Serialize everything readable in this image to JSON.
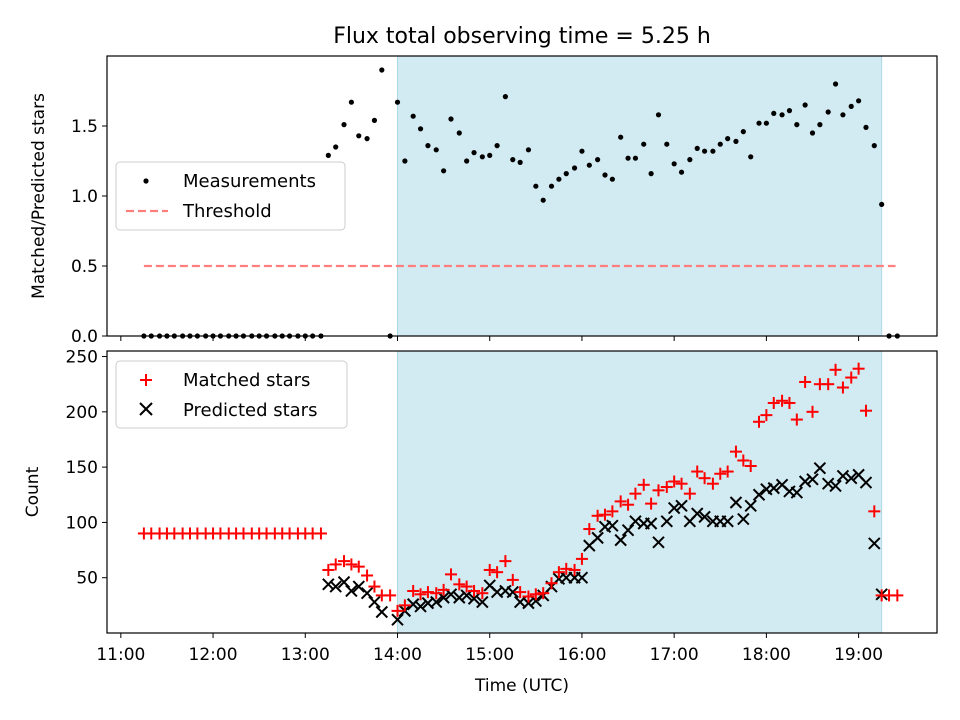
{
  "title": "Flux total observing time = 5.25 h",
  "colors": {
    "shade": "#add8e6",
    "measurement": "#000000",
    "threshold": "#ff7f7f",
    "matched": "#ff0000",
    "predicted": "#000000"
  },
  "chart_data": [
    {
      "type": "scatter",
      "ylabel": "Matched/Predicted stars",
      "xlim": [
        10.85,
        19.85
      ],
      "ylim": [
        0,
        2.0
      ],
      "yticks": [
        "0.0",
        "0.5",
        "1.0",
        "1.5"
      ],
      "legend_position": "center-left",
      "legend": [
        "Measurements",
        "Threshold"
      ],
      "observing_window": [
        "14:00",
        "19:15"
      ],
      "threshold": {
        "value": 0.5,
        "x_range": [
          11.25,
          19.4
        ]
      },
      "series": [
        {
          "name": "Measurements",
          "points": [
            [
              11.25,
              0
            ],
            [
              11.33,
              0
            ],
            [
              11.42,
              0
            ],
            [
              11.5,
              0
            ],
            [
              11.58,
              0
            ],
            [
              11.67,
              0
            ],
            [
              11.75,
              0
            ],
            [
              11.83,
              0
            ],
            [
              11.92,
              0
            ],
            [
              12.0,
              0
            ],
            [
              12.08,
              0
            ],
            [
              12.17,
              0
            ],
            [
              12.25,
              0
            ],
            [
              12.33,
              0
            ],
            [
              12.42,
              0
            ],
            [
              12.5,
              0
            ],
            [
              12.58,
              0
            ],
            [
              12.67,
              0
            ],
            [
              12.75,
              0
            ],
            [
              12.83,
              0
            ],
            [
              12.92,
              0
            ],
            [
              13.0,
              0
            ],
            [
              13.08,
              0
            ],
            [
              13.17,
              0
            ],
            [
              13.25,
              1.29
            ],
            [
              13.33,
              1.35
            ],
            [
              13.42,
              1.51
            ],
            [
              13.5,
              1.67
            ],
            [
              13.58,
              1.43
            ],
            [
              13.67,
              1.41
            ],
            [
              13.75,
              1.54
            ],
            [
              13.83,
              1.9
            ],
            [
              13.92,
              0
            ],
            [
              14.0,
              1.67
            ],
            [
              14.08,
              1.25
            ],
            [
              14.17,
              1.57
            ],
            [
              14.25,
              1.48
            ],
            [
              14.33,
              1.36
            ],
            [
              14.42,
              1.33
            ],
            [
              14.5,
              1.18
            ],
            [
              14.58,
              1.55
            ],
            [
              14.67,
              1.45
            ],
            [
              14.75,
              1.25
            ],
            [
              14.83,
              1.31
            ],
            [
              14.92,
              1.28
            ],
            [
              15.0,
              1.29
            ],
            [
              15.08,
              1.36
            ],
            [
              15.17,
              1.71
            ],
            [
              15.25,
              1.26
            ],
            [
              15.33,
              1.24
            ],
            [
              15.42,
              1.33
            ],
            [
              15.5,
              1.07
            ],
            [
              15.58,
              0.97
            ],
            [
              15.67,
              1.07
            ],
            [
              15.75,
              1.12
            ],
            [
              15.83,
              1.16
            ],
            [
              15.92,
              1.2
            ],
            [
              16.0,
              1.32
            ],
            [
              16.08,
              1.22
            ],
            [
              16.17,
              1.26
            ],
            [
              16.25,
              1.15
            ],
            [
              16.33,
              1.12
            ],
            [
              16.42,
              1.42
            ],
            [
              16.5,
              1.27
            ],
            [
              16.58,
              1.27
            ],
            [
              16.67,
              1.37
            ],
            [
              16.75,
              1.16
            ],
            [
              16.83,
              1.58
            ],
            [
              16.92,
              1.37
            ],
            [
              17.0,
              1.23
            ],
            [
              17.08,
              1.17
            ],
            [
              17.17,
              1.26
            ],
            [
              17.25,
              1.34
            ],
            [
              17.33,
              1.32
            ],
            [
              17.42,
              1.32
            ],
            [
              17.5,
              1.37
            ],
            [
              17.58,
              1.41
            ],
            [
              17.67,
              1.39
            ],
            [
              17.75,
              1.46
            ],
            [
              17.83,
              1.28
            ],
            [
              17.92,
              1.52
            ],
            [
              18.0,
              1.52
            ],
            [
              18.08,
              1.59
            ],
            [
              18.17,
              1.58
            ],
            [
              18.25,
              1.61
            ],
            [
              18.33,
              1.51
            ],
            [
              18.42,
              1.65
            ],
            [
              18.5,
              1.45
            ],
            [
              18.58,
              1.51
            ],
            [
              18.67,
              1.6
            ],
            [
              18.75,
              1.8
            ],
            [
              18.83,
              1.58
            ],
            [
              18.92,
              1.64
            ],
            [
              19.0,
              1.68
            ],
            [
              19.08,
              1.49
            ],
            [
              19.17,
              1.36
            ],
            [
              19.25,
              0.94
            ],
            [
              19.33,
              0
            ],
            [
              19.42,
              0
            ]
          ]
        }
      ]
    },
    {
      "type": "scatter",
      "xlabel": "Time (UTC)",
      "ylabel": "Count",
      "xlim": [
        10.85,
        19.85
      ],
      "ylim": [
        0,
        255
      ],
      "xticks": [
        "11:00",
        "12:00",
        "13:00",
        "14:00",
        "15:00",
        "16:00",
        "17:00",
        "18:00",
        "19:00"
      ],
      "yticks": [
        "50",
        "100",
        "150",
        "200",
        "250"
      ],
      "legend_position": "top-left",
      "legend": [
        "Matched stars",
        "Predicted stars"
      ],
      "observing_window": [
        "14:00",
        "19:15"
      ],
      "series": [
        {
          "name": "Matched stars",
          "points": [
            [
              11.25,
              90
            ],
            [
              11.33,
              90
            ],
            [
              11.42,
              90
            ],
            [
              11.5,
              90
            ],
            [
              11.58,
              90
            ],
            [
              11.67,
              90
            ],
            [
              11.75,
              90
            ],
            [
              11.83,
              90
            ],
            [
              11.92,
              90
            ],
            [
              12.0,
              90
            ],
            [
              12.08,
              90
            ],
            [
              12.17,
              90
            ],
            [
              12.25,
              90
            ],
            [
              12.33,
              90
            ],
            [
              12.42,
              90
            ],
            [
              12.5,
              90
            ],
            [
              12.58,
              90
            ],
            [
              12.67,
              90
            ],
            [
              12.75,
              90
            ],
            [
              12.83,
              90
            ],
            [
              12.92,
              90
            ],
            [
              13.0,
              90
            ],
            [
              13.08,
              90
            ],
            [
              13.17,
              90
            ],
            [
              13.25,
              57
            ],
            [
              13.33,
              62
            ],
            [
              13.42,
              65
            ],
            [
              13.5,
              62
            ],
            [
              13.58,
              60
            ],
            [
              13.67,
              52
            ],
            [
              13.75,
              42
            ],
            [
              13.83,
              34
            ],
            [
              13.92,
              34
            ],
            [
              14.0,
              20
            ],
            [
              14.08,
              25
            ],
            [
              14.17,
              38
            ],
            [
              14.25,
              35
            ],
            [
              14.33,
              37
            ],
            [
              14.42,
              36
            ],
            [
              14.5,
              39
            ],
            [
              14.58,
              53
            ],
            [
              14.67,
              44
            ],
            [
              14.75,
              42
            ],
            [
              14.83,
              38
            ],
            [
              14.92,
              36
            ],
            [
              15.0,
              57
            ],
            [
              15.08,
              55
            ],
            [
              15.17,
              65
            ],
            [
              15.25,
              48
            ],
            [
              15.33,
              37
            ],
            [
              15.42,
              33
            ],
            [
              15.5,
              35
            ],
            [
              15.58,
              36
            ],
            [
              15.67,
              45
            ],
            [
              15.75,
              55
            ],
            [
              15.83,
              58
            ],
            [
              15.92,
              57
            ],
            [
              16.0,
              67
            ],
            [
              16.08,
              94
            ],
            [
              16.17,
              106
            ],
            [
              16.25,
              107
            ],
            [
              16.33,
              110
            ],
            [
              16.42,
              119
            ],
            [
              16.5,
              116
            ],
            [
              16.58,
              126
            ],
            [
              16.67,
              134
            ],
            [
              16.75,
              117
            ],
            [
              16.83,
              129
            ],
            [
              16.92,
              132
            ],
            [
              17.0,
              137
            ],
            [
              17.08,
              135
            ],
            [
              17.17,
              126
            ],
            [
              17.25,
              146
            ],
            [
              17.33,
              140
            ],
            [
              17.42,
              135
            ],
            [
              17.5,
              144
            ],
            [
              17.58,
              146
            ],
            [
              17.67,
              164
            ],
            [
              17.75,
              156
            ],
            [
              17.83,
              151
            ],
            [
              17.92,
              191
            ],
            [
              18.0,
              197
            ],
            [
              18.08,
              208
            ],
            [
              18.17,
              210
            ],
            [
              18.25,
              208
            ],
            [
              18.33,
              193
            ],
            [
              18.42,
              227
            ],
            [
              18.5,
              200
            ],
            [
              18.58,
              225
            ],
            [
              18.67,
              225
            ],
            [
              18.75,
              238
            ],
            [
              18.83,
              222
            ],
            [
              18.92,
              231
            ],
            [
              19.0,
              239
            ],
            [
              19.08,
              201
            ],
            [
              19.17,
              110
            ],
            [
              19.25,
              34
            ],
            [
              19.33,
              34
            ],
            [
              19.42,
              34
            ]
          ]
        },
        {
          "name": "Predicted stars",
          "points": [
            [
              13.25,
              44
            ],
            [
              13.33,
              42
            ],
            [
              13.42,
              46
            ],
            [
              13.5,
              38
            ],
            [
              13.58,
              42
            ],
            [
              13.67,
              36
            ],
            [
              13.75,
              28
            ],
            [
              13.83,
              19
            ],
            [
              14.0,
              12
            ],
            [
              14.08,
              20
            ],
            [
              14.17,
              26
            ],
            [
              14.25,
              24
            ],
            [
              14.33,
              27
            ],
            [
              14.42,
              28
            ],
            [
              14.5,
              32
            ],
            [
              14.58,
              35
            ],
            [
              14.67,
              32
            ],
            [
              14.75,
              34
            ],
            [
              14.83,
              31
            ],
            [
              14.92,
              28
            ],
            [
              15.0,
              43
            ],
            [
              15.08,
              37
            ],
            [
              15.17,
              38
            ],
            [
              15.25,
              37
            ],
            [
              15.33,
              28
            ],
            [
              15.42,
              27
            ],
            [
              15.5,
              29
            ],
            [
              15.58,
              34
            ],
            [
              15.67,
              42
            ],
            [
              15.75,
              49
            ],
            [
              15.83,
              50
            ],
            [
              15.92,
              50
            ],
            [
              16.0,
              50
            ],
            [
              16.08,
              79
            ],
            [
              16.17,
              86
            ],
            [
              16.25,
              96
            ],
            [
              16.33,
              97
            ],
            [
              16.42,
              84
            ],
            [
              16.5,
              93
            ],
            [
              16.58,
              101
            ],
            [
              16.67,
              99
            ],
            [
              16.75,
              99
            ],
            [
              16.83,
              82
            ],
            [
              16.92,
              101
            ],
            [
              17.0,
              113
            ],
            [
              17.08,
              115
            ],
            [
              17.17,
              101
            ],
            [
              17.25,
              108
            ],
            [
              17.33,
              105
            ],
            [
              17.42,
              101
            ],
            [
              17.5,
              101
            ],
            [
              17.58,
              101
            ],
            [
              17.67,
              118
            ],
            [
              17.75,
              103
            ],
            [
              17.83,
              115
            ],
            [
              17.92,
              125
            ],
            [
              18.0,
              130
            ],
            [
              18.08,
              131
            ],
            [
              18.17,
              134
            ],
            [
              18.25,
              128
            ],
            [
              18.33,
              127
            ],
            [
              18.42,
              137
            ],
            [
              18.5,
              139
            ],
            [
              18.58,
              149
            ],
            [
              18.67,
              135
            ],
            [
              18.75,
              133
            ],
            [
              18.83,
              142
            ],
            [
              18.92,
              140
            ],
            [
              19.0,
              143
            ],
            [
              19.08,
              136
            ],
            [
              19.17,
              81
            ],
            [
              19.25,
              35
            ]
          ]
        }
      ]
    }
  ]
}
